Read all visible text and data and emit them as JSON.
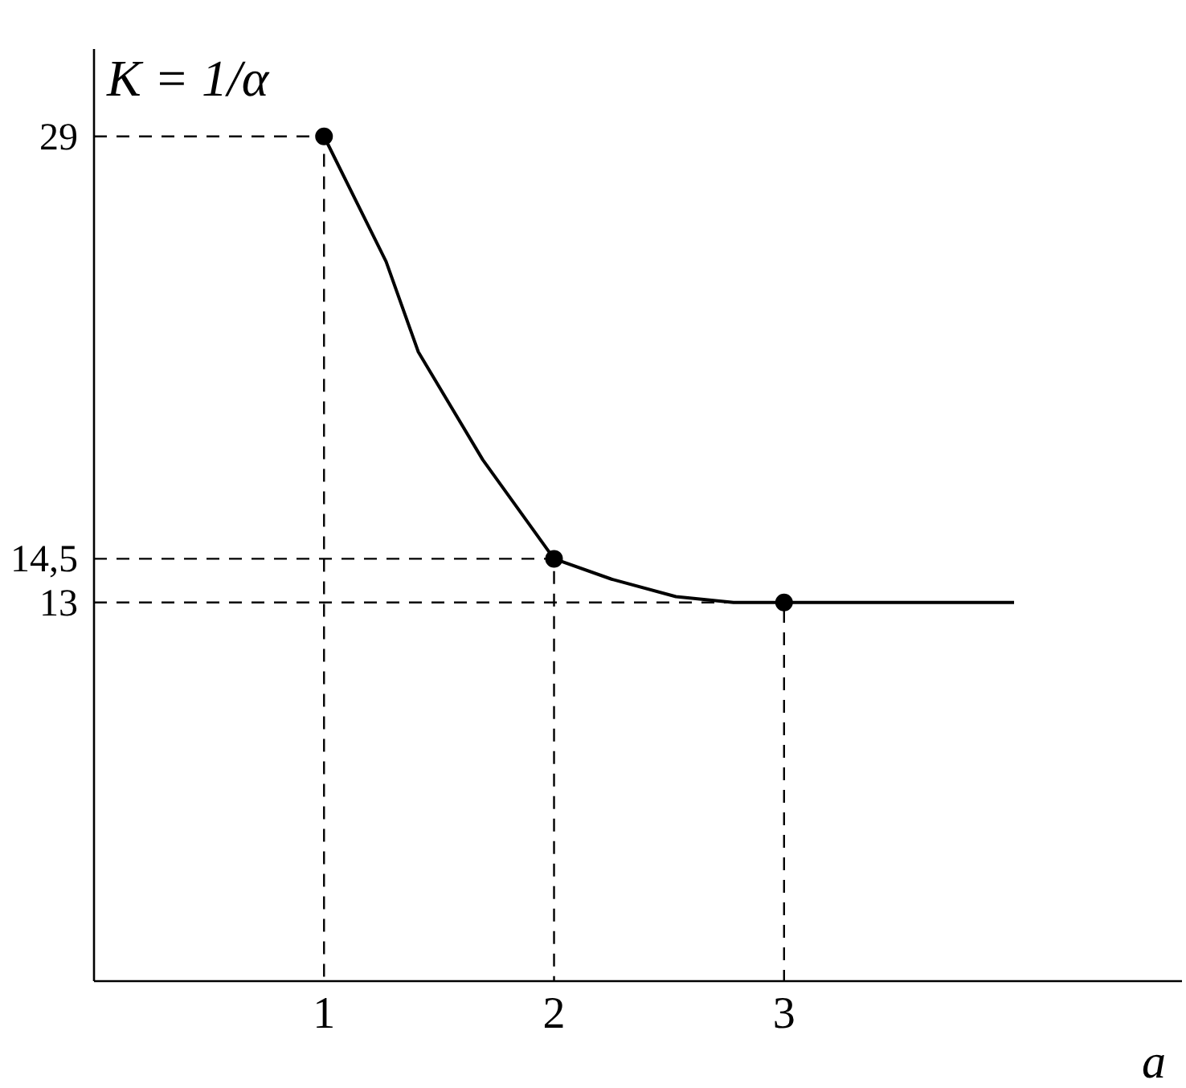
{
  "chart_data": {
    "type": "line",
    "ylabel": "K = 1/α",
    "xlabel": "a",
    "xlim": [
      0,
      4.73
    ],
    "ylim": [
      0,
      32
    ],
    "xticks": [
      1,
      2,
      3
    ],
    "yticks": [
      13,
      {
        "value": 14.5,
        "label": "14,5"
      },
      29
    ],
    "grid": false,
    "series": [
      {
        "color": "#000000",
        "line_style": "solid",
        "marker": "none",
        "x": [
          1,
          1.27,
          1.41,
          1.69,
          2,
          2.25,
          2.53,
          2.78,
          3,
          4
        ],
        "values": [
          29,
          24.7,
          21.6,
          17.9,
          14.5,
          13.8,
          13.2,
          13,
          13,
          13
        ]
      },
      {
        "type": "line",
        "color": "#000000",
        "line_style": "dashed",
        "marker": "none",
        "x": [
          0,
          1,
          1
        ],
        "values": [
          29,
          29,
          0
        ]
      },
      {
        "type": "line",
        "color": "#000000",
        "line_style": "dashed",
        "marker": "none",
        "x": [
          0,
          2,
          2
        ],
        "values": [
          14.5,
          14.5,
          0
        ]
      },
      {
        "type": "line",
        "color": "#000000",
        "line_style": "dashed",
        "marker": "none",
        "x": [
          0,
          3,
          3
        ],
        "values": [
          13,
          13,
          0
        ]
      },
      {
        "type": "scatter",
        "color": "#000000",
        "marker": "circle",
        "x": [
          1,
          2,
          3
        ],
        "values": [
          29,
          14.5,
          13
        ]
      }
    ]
  }
}
